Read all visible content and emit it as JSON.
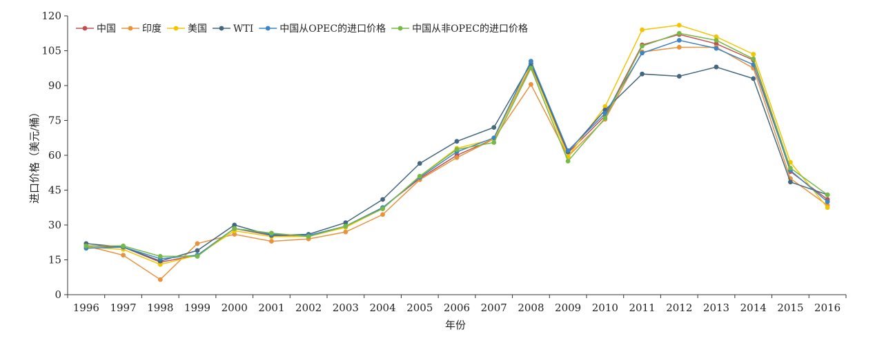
{
  "chart_data": {
    "type": "line",
    "title": "",
    "xlabel": "年份",
    "ylabel": "进口价格（美元/桶）",
    "ylim": [
      0,
      120
    ],
    "yticks": [
      0,
      15,
      30,
      45,
      60,
      75,
      90,
      105,
      120
    ],
    "grid": false,
    "legend_position": "top-left",
    "categories": [
      "1996",
      "1997",
      "1998",
      "1999",
      "2000",
      "2001",
      "2002",
      "2003",
      "2004",
      "2005",
      "2006",
      "2007",
      "2008",
      "2009",
      "2010",
      "2011",
      "2012",
      "2013",
      "2014",
      "2015",
      "2016"
    ],
    "series": [
      {
        "name": "中国",
        "color": "#C0504D",
        "values": [
          21.0,
          20.5,
          14.0,
          17.0,
          28.5,
          25.5,
          25.0,
          29.5,
          37.5,
          50.0,
          60.0,
          67.0,
          98.5,
          61.0,
          77.0,
          107.5,
          112.0,
          108.0,
          101.0,
          53.0,
          41.0
        ]
      },
      {
        "name": "印度",
        "color": "#E8923D",
        "values": [
          21.0,
          17.0,
          6.5,
          22.0,
          26.0,
          23.0,
          24.0,
          27.0,
          34.5,
          49.5,
          59.0,
          67.0,
          90.5,
          59.5,
          75.5,
          104.5,
          106.5,
          106.5,
          97.5,
          50.0,
          38.5
        ]
      },
      {
        "name": "美国",
        "color": "#F2C500",
        "values": [
          20.5,
          19.5,
          13.0,
          17.0,
          27.5,
          25.0,
          25.0,
          29.0,
          37.0,
          51.0,
          63.0,
          67.0,
          99.0,
          59.5,
          81.0,
          114.0,
          116.0,
          111.0,
          103.5,
          57.0,
          37.5
        ]
      },
      {
        "name": "WTI",
        "color": "#44667F",
        "values": [
          22.0,
          20.5,
          14.5,
          19.0,
          30.0,
          25.5,
          26.0,
          31.0,
          41.0,
          56.5,
          66.0,
          72.0,
          99.5,
          61.5,
          79.5,
          95.0,
          94.0,
          98.0,
          93.0,
          48.5,
          43.0
        ]
      },
      {
        "name": "中国从OPEC的进口价格",
        "color": "#3C84C4",
        "values": [
          20.0,
          20.5,
          15.5,
          17.0,
          28.5,
          26.0,
          25.5,
          29.5,
          37.5,
          50.5,
          61.5,
          67.5,
          100.5,
          62.0,
          78.0,
          104.0,
          109.5,
          106.0,
          99.0,
          53.5,
          40.0
        ]
      },
      {
        "name": "中国从非OPEC的进口价格",
        "color": "#76B947",
        "values": [
          21.0,
          21.0,
          16.5,
          16.5,
          28.5,
          26.5,
          25.0,
          29.5,
          37.0,
          51.0,
          62.5,
          65.5,
          97.5,
          57.5,
          76.0,
          107.0,
          112.5,
          109.5,
          101.5,
          54.5,
          43.0
        ]
      }
    ]
  }
}
